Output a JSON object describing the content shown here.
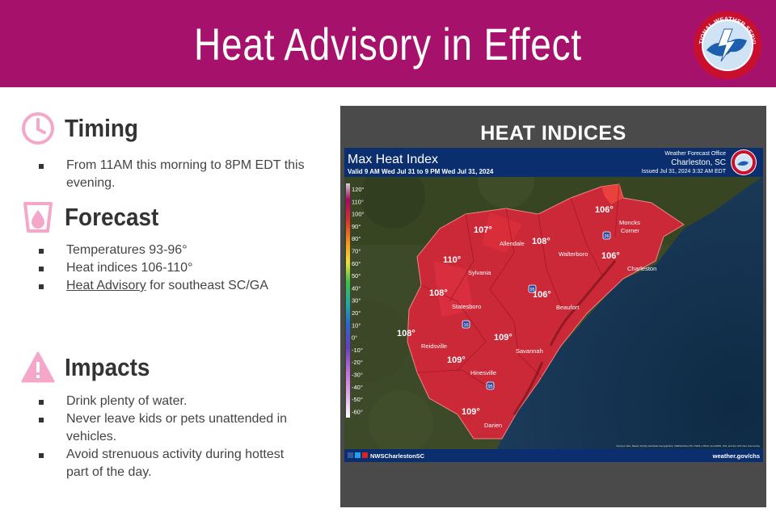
{
  "banner": {
    "title": "Heat Advisory in Effect",
    "color": "#a6126b",
    "logo_text": "NATIONAL WEATHER SERVICE"
  },
  "timing": {
    "title": "Timing",
    "icon": "clock-icon",
    "items": [
      "From 11AM this morning to 8PM EDT this",
      "evening."
    ]
  },
  "forecast": {
    "title": "Forecast",
    "icon": "heat-drop-icon",
    "items": [
      "Temperatures 93-96°",
      "Heat indices 106-110°"
    ],
    "advisory_link": "Heat Advisory",
    "advisory_suffix": " for southeast SC/GA"
  },
  "impacts": {
    "title": "Impacts",
    "icon": "warning-icon",
    "items": [
      [
        "Drink plenty of water."
      ],
      [
        "Never leave kids or pets unattended in",
        "vehicles."
      ],
      [
        "Avoid strenuous activity during hottest",
        "part of the day."
      ]
    ]
  },
  "map_panel": {
    "frame_title": "HEAT INDICES",
    "map_title": "Max Heat Index",
    "valid": "Valid 9 AM Wed Jul 31 to 9 PM Wed Jul 31, 2024",
    "office_line1": "Weather Forecast Office",
    "office_line2": "Charleston, SC",
    "issued": "Issued Jul 31, 2024 3:32 AM EDT",
    "social": "NWSCharlestonSC",
    "website": "weather.gov/chs",
    "source": "Sources: Esri, Maxar, FireFly, Earthstar Geographics, CNES/Airbus DS, USDA, USGS, AeroGRID, IGN, and the GIS User Community",
    "legend": [
      "120°",
      "110°",
      "100°",
      "90°",
      "80°",
      "70°",
      "60°",
      "50°",
      "40°",
      "30°",
      "20°",
      "10°",
      "0°",
      "-10°",
      "-20°",
      "-30°",
      "-40°",
      "-50°",
      "-60°"
    ],
    "values": [
      "106°",
      "107°",
      "108°",
      "106°",
      "110°",
      "108°",
      "106°",
      "108°",
      "109°",
      "109°",
      "109°"
    ],
    "cities": [
      "Moncks Corner",
      "Allendale",
      "Walterboro",
      "Charleston",
      "Sylvania",
      "Statesboro",
      "Beaufort",
      "Reidsville",
      "Savannah",
      "Hinesville",
      "Darien"
    ],
    "shields": [
      "26",
      "95",
      "16",
      "95"
    ]
  }
}
